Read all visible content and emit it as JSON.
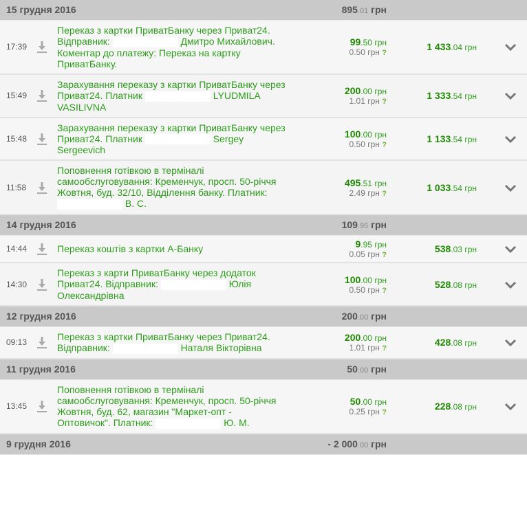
{
  "currency": "грн",
  "groups": [
    {
      "date": "15 грудня 2016",
      "total_int": "895",
      "total_dec": ".01",
      "rows": [
        {
          "time": "17:39",
          "desc": [
            "Переказ з картки ПриватБанку через Приват24. Відправник:",
            "#",
            "Дмитро Михайлович. Коментар до платежу: Переказ на картку ПриватБанку."
          ],
          "amt_int": "99",
          "amt_dec": ".50",
          "fee": "0.50",
          "bal_int": "1 433",
          "bal_dec": ".04"
        },
        {
          "time": "15:49",
          "desc": [
            "Зарахування переказу з картки ПриватБанку через Приват24. Платник",
            "#",
            "LYUDMILA VASILIVNA"
          ],
          "amt_int": "200",
          "amt_dec": ".00",
          "fee": "1.01",
          "bal_int": "1 333",
          "bal_dec": ".54"
        },
        {
          "time": "15:48",
          "desc": [
            "Зарахування переказу з картки ПриватБанку через Приват24. Платник",
            "#",
            "Sergey Sergeevich"
          ],
          "amt_int": "100",
          "amt_dec": ".00",
          "fee": "0.50",
          "bal_int": "1 133",
          "bal_dec": ".54"
        },
        {
          "time": "11:58",
          "desc": [
            "Поповнення готівкою в терміналі самообслуговування: Кременчук, просп. 50-річчя Жовтня, буд. 32/10, Відділення банку. Платник:",
            "#",
            "В. С."
          ],
          "amt_int": "495",
          "amt_dec": ".51",
          "fee": "2.49",
          "bal_int": "1 033",
          "bal_dec": ".54"
        }
      ]
    },
    {
      "date": "14 грудня 2016",
      "total_int": "109",
      "total_dec": ".95",
      "rows": [
        {
          "time": "14:44",
          "desc": [
            "Переказ коштів з картки А-Банку"
          ],
          "amt_int": "9",
          "amt_dec": ".95",
          "fee": "0.05",
          "bal_int": "538",
          "bal_dec": ".03"
        },
        {
          "time": "14:30",
          "desc": [
            "Переказ з карти ПриватБанку через додаток Приват24. Відправник:",
            "#",
            "Юлія Олександрівна"
          ],
          "amt_int": "100",
          "amt_dec": ".00",
          "fee": "0.50",
          "bal_int": "528",
          "bal_dec": ".08"
        }
      ]
    },
    {
      "date": "12 грудня 2016",
      "total_int": "200",
      "total_dec": ".00",
      "rows": [
        {
          "time": "09:13",
          "desc": [
            "Переказ з картки ПриватБанку через Приват24. Відправник:",
            "#",
            "Наталя Вікторівна"
          ],
          "amt_int": "200",
          "amt_dec": ".00",
          "fee": "1.01",
          "bal_int": "428",
          "bal_dec": ".08"
        }
      ]
    },
    {
      "date": "11 грудня 2016",
      "total_int": "50",
      "total_dec": ".00",
      "rows": [
        {
          "time": "13:45",
          "desc": [
            "Поповнення готівкою в терміналі самообслуговування: Кременчук, просп. 50-річчя Жовтня, буд. 62, магазин \"Маркет-опт - Оптовичок\". Платник:",
            "#",
            "Ю. М."
          ],
          "amt_int": "50",
          "amt_dec": ".00",
          "fee": "0.25",
          "bal_int": "228",
          "bal_dec": ".08"
        }
      ]
    },
    {
      "date": "9 грудня 2016",
      "total_int": "- 2 000",
      "total_dec": ".00",
      "rows": []
    }
  ],
  "fee_help_symbol": "?",
  "icons": {
    "download": "download-arrow-icon",
    "expand": "chevron-down-icon"
  },
  "colors": {
    "green": "#2d9c1b",
    "header_bg": "#c9c9c9"
  }
}
